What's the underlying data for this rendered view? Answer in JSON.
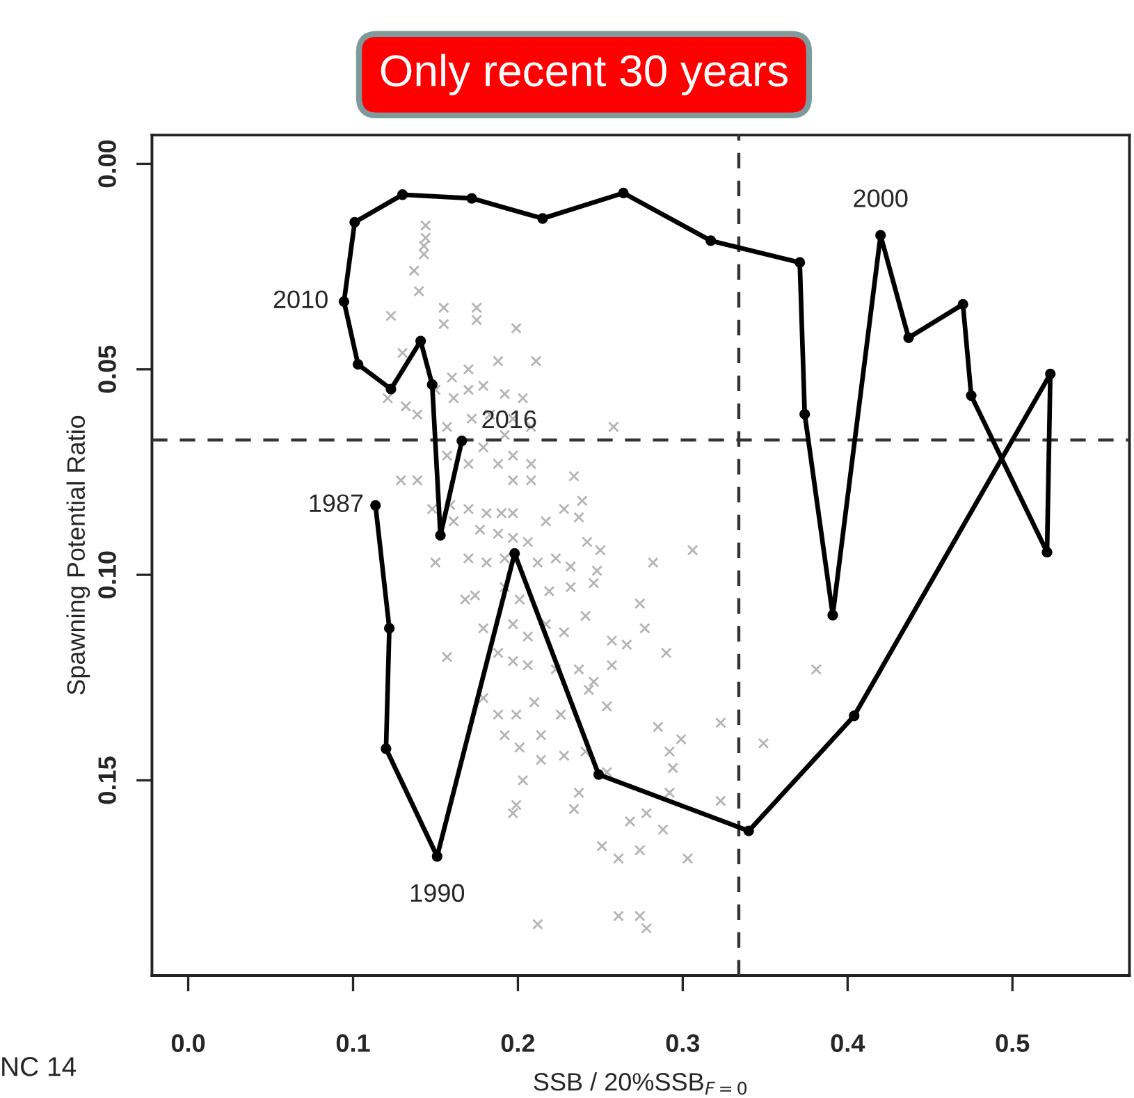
{
  "chart_data": {
    "type": "line",
    "xlabel": "SSB / 20%SSB$_{F=0}$",
    "ylabel": "Spawning Potential Ratio",
    "xlim": [
      -0.022,
      0.571
    ],
    "ylim": [
      0.1975,
      -0.007
    ],
    "xticks": [
      {
        "value": 0,
        "label": "0.0"
      },
      0.1,
      0.2,
      0.3,
      0.4,
      0.5
    ],
    "yticks": [
      {
        "value": 0,
        "label": "0.00"
      },
      0.05,
      {
        "value": 0.1,
        "label": "0.10"
      },
      0.15
    ],
    "grid": false,
    "legend": false,
    "series": [
      {
        "type": "scatter",
        "marker": "cross",
        "color": "#b4b4b4",
        "x": [
          0.144,
          0.144,
          0.143,
          0.143,
          0.137,
          0.14,
          0.123,
          0.155,
          0.175,
          0.175,
          0.155,
          0.199,
          0.211,
          0.188,
          0.17,
          0.16,
          0.13,
          0.121,
          0.132,
          0.139,
          0.15,
          0.161,
          0.17,
          0.179,
          0.192,
          0.203,
          0.183,
          0.172,
          0.197,
          0.208,
          0.258,
          0.157,
          0.192,
          0.179,
          0.197,
          0.208,
          0.157,
          0.17,
          0.188,
          0.197,
          0.208,
          0.234,
          0.129,
          0.139,
          0.148,
          0.159,
          0.17,
          0.181,
          0.19,
          0.197,
          0.228,
          0.239,
          0.237,
          0.217,
          0.161,
          0.177,
          0.188,
          0.197,
          0.206,
          0.242,
          0.25,
          0.306,
          0.15,
          0.17,
          0.181,
          0.192,
          0.212,
          0.223,
          0.232,
          0.248,
          0.282,
          0.168,
          0.174,
          0.192,
          0.201,
          0.219,
          0.232,
          0.246,
          0.274,
          0.157,
          0.179,
          0.197,
          0.206,
          0.217,
          0.228,
          0.241,
          0.257,
          0.266,
          0.277,
          0.29,
          0.381,
          0.188,
          0.197,
          0.206,
          0.223,
          0.237,
          0.246,
          0.257,
          0.179,
          0.188,
          0.199,
          0.21,
          0.226,
          0.243,
          0.254,
          0.285,
          0.299,
          0.323,
          0.349,
          0.192,
          0.201,
          0.214,
          0.228,
          0.241,
          0.292,
          0.294,
          0.203,
          0.214,
          0.237,
          0.254,
          0.292,
          0.323,
          0.199,
          0.197,
          0.234,
          0.268,
          0.278,
          0.288,
          0.251,
          0.261,
          0.274,
          0.303,
          0.212,
          0.261,
          0.274,
          0.278
        ],
        "values": [
          0.015,
          0.018,
          0.02,
          0.022,
          0.026,
          0.031,
          0.037,
          0.035,
          0.035,
          0.038,
          0.039,
          0.04,
          0.048,
          0.048,
          0.05,
          0.052,
          0.046,
          0.057,
          0.059,
          0.061,
          0.055,
          0.057,
          0.055,
          0.054,
          0.056,
          0.057,
          0.061,
          0.062,
          0.062,
          0.064,
          0.064,
          0.064,
          0.066,
          0.069,
          0.071,
          0.073,
          0.071,
          0.073,
          0.073,
          0.077,
          0.077,
          0.076,
          0.077,
          0.077,
          0.084,
          0.083,
          0.084,
          0.085,
          0.085,
          0.085,
          0.084,
          0.082,
          0.086,
          0.087,
          0.087,
          0.089,
          0.09,
          0.091,
          0.092,
          0.092,
          0.094,
          0.094,
          0.097,
          0.096,
          0.097,
          0.096,
          0.097,
          0.096,
          0.098,
          0.099,
          0.097,
          0.106,
          0.105,
          0.103,
          0.106,
          0.104,
          0.103,
          0.102,
          0.107,
          0.12,
          0.113,
          0.112,
          0.115,
          0.112,
          0.114,
          0.11,
          0.116,
          0.117,
          0.113,
          0.119,
          0.123,
          0.119,
          0.121,
          0.122,
          0.123,
          0.123,
          0.126,
          0.122,
          0.13,
          0.134,
          0.134,
          0.131,
          0.134,
          0.128,
          0.132,
          0.137,
          0.14,
          0.136,
          0.141,
          0.139,
          0.142,
          0.139,
          0.144,
          0.143,
          0.143,
          0.147,
          0.15,
          0.145,
          0.153,
          0.148,
          0.153,
          0.155,
          0.156,
          0.158,
          0.157,
          0.16,
          0.158,
          0.162,
          0.166,
          0.169,
          0.167,
          0.169,
          0.185,
          0.183,
          0.183,
          0.186
        ]
      },
      {
        "marker": "circle",
        "line_style": "solid",
        "color": "#000000",
        "x": [
          0.1136,
          0.122,
          0.12,
          0.151,
          0.198,
          0.249,
          0.34,
          0.404,
          0.523,
          0.521,
          0.475,
          0.47,
          0.437,
          0.42,
          0.391,
          0.374,
          0.371,
          0.317,
          0.264,
          0.215,
          0.172,
          0.13,
          0.101,
          0.0945,
          0.103,
          0.123,
          0.141,
          0.148,
          0.153,
          0.166
        ],
        "values": [
          0.0831,
          0.113,
          0.1423,
          0.1685,
          0.0948,
          0.1486,
          0.1623,
          0.1343,
          0.0511,
          0.0945,
          0.0564,
          0.0342,
          0.0423,
          0.0174,
          0.1098,
          0.0609,
          0.024,
          0.0187,
          0.0071,
          0.0133,
          0.0084,
          0.0075,
          0.0142,
          0.0335,
          0.0488,
          0.0548,
          0.0431,
          0.0537,
          0.0904,
          0.0674
        ]
      }
    ],
    "ref_lines": [
      {
        "axis": "x",
        "value": 0.334,
        "color": "#333333",
        "line_style": "dashed"
      },
      {
        "axis": "y",
        "value": 0.0672,
        "color": "#333333",
        "line_style": "dashed"
      }
    ],
    "annotations": [
      "Only recent 30 years",
      "NC 14",
      {
        "text": "1987",
        "x": 0.1136,
        "y": 0.0831
      },
      {
        "text": "1990",
        "x": 0.151,
        "y": 0.1685
      },
      {
        "text": "2000",
        "x": 0.42,
        "y": 0.0174
      },
      {
        "text": "2010",
        "x": 0.0945,
        "y": 0.0335
      },
      {
        "text": "2016",
        "x": 0.166,
        "y": 0.0674
      }
    ]
  }
}
